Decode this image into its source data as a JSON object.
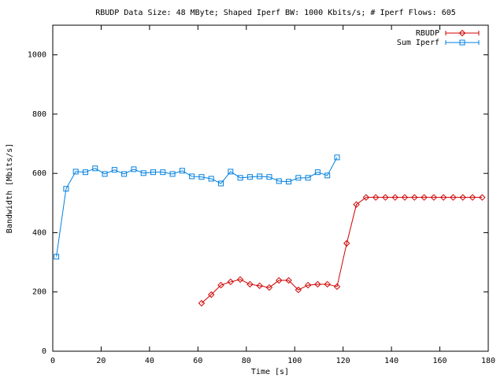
{
  "chart_data": {
    "type": "line",
    "title": "RBUDP Data Size: 48 MByte; Shaped Iperf BW: 1000 Kbits/s; # Iperf Flows: 605",
    "x_label": "Time [s]",
    "y_label": "Bandwidth [Mbits/s]",
    "xlim": [
      0,
      180
    ],
    "xticks": [
      0,
      20,
      40,
      60,
      80,
      100,
      120,
      140,
      160,
      180
    ],
    "ylim": [
      0,
      1100
    ],
    "yticks": [
      0,
      200,
      400,
      600,
      800,
      1000
    ],
    "grid": false,
    "legend": "top-right",
    "series": [
      {
        "name": "RBUDP",
        "color": "#d00000",
        "marker": "diamond",
        "x": [
          61.5,
          65.5,
          69.5,
          73.5,
          77.5,
          81.5,
          85.5,
          89.5,
          93.5,
          97.5,
          101.5,
          105.5,
          109.5,
          113.5,
          117.5,
          121.5,
          125.5,
          129.5,
          133.5,
          137.5,
          141.5,
          145.5,
          149.5,
          153.5,
          157.5,
          161.5,
          165.5,
          169.5,
          173.5,
          177.5
        ],
        "values": [
          162,
          191,
          223,
          234,
          242,
          226,
          221,
          215,
          239,
          239,
          207,
          223,
          226,
          226,
          218,
          364,
          495,
          519,
          519,
          519,
          519,
          519,
          519,
          519,
          519,
          519,
          519,
          519,
          519,
          519
        ]
      },
      {
        "name": "Sum Iperf",
        "color": "#0080e0",
        "marker": "square",
        "x": [
          1.5,
          5.5,
          9.5,
          13.5,
          17.5,
          21.5,
          25.5,
          29.5,
          33.5,
          37.5,
          41.5,
          45.5,
          49.5,
          53.5,
          57.5,
          61.5,
          65.5,
          69.5,
          73.5,
          77.5,
          81.5,
          85.5,
          89.5,
          93.5,
          97.5,
          101.5,
          105.5,
          109.5,
          113.5,
          117.5
        ],
        "values": [
          319,
          548,
          606,
          604,
          617,
          598,
          612,
          598,
          614,
          601,
          604,
          604,
          598,
          609,
          590,
          588,
          582,
          566,
          606,
          585,
          588,
          590,
          588,
          574,
          572,
          585,
          585,
          604,
          593,
          654
        ]
      }
    ]
  }
}
